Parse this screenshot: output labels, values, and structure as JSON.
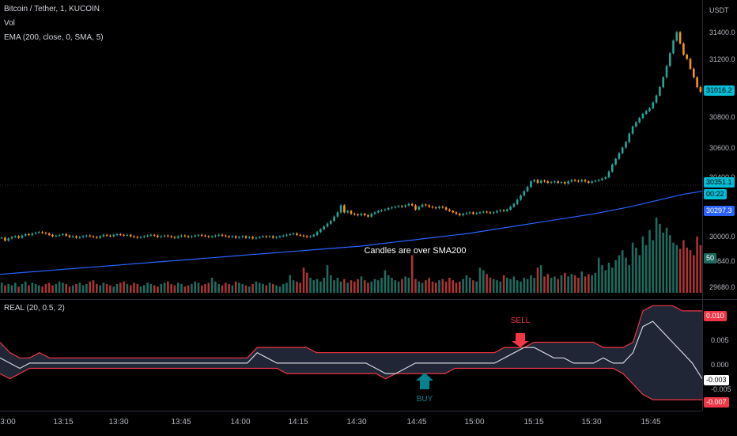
{
  "header": {
    "symbol": "Bitcoin / Tether, 1, KUCOIN",
    "vol": "Vol",
    "ema": "EMA (200, close, 0, SMA, 5)",
    "osc": "REAL (20, 0.5, 2)"
  },
  "price_axis": {
    "unit": "USDT",
    "ticks": [
      "31400.0",
      "31200.0",
      "30800.0",
      "30600.0",
      "30400.0",
      "30000.0",
      "29840.0",
      "29680.0"
    ],
    "last_price": "31016.2",
    "bar_price": "30351.1",
    "countdown": "00:22",
    "ema_price": "30297.3",
    "vol_tag": "50"
  },
  "osc_axis": {
    "ticks": [
      "0.005",
      "0.000",
      "-0.005"
    ],
    "upper_tag": "0.010",
    "value_tag": "-0.003",
    "lower_tag": "-0.007"
  },
  "time_axis": [
    "3:00",
    "13:15",
    "13:30",
    "13:45",
    "14:00",
    "14:15",
    "14:30",
    "14:45",
    "15:00",
    "15:15",
    "15:30",
    "15:45"
  ],
  "annotations": {
    "candles_note": "Candles are over SMA200",
    "buy": "BUY",
    "sell": "SELL"
  },
  "colors": {
    "up": "#26a69a",
    "down": "#f7931a",
    "ema": "#2962ff",
    "vol_up": "#1d6b5f",
    "vol_down": "#a93434",
    "band": "#f23645",
    "price_tag": "#00bcd4"
  },
  "chart_data": {
    "type": "candlestick",
    "ylim": [
      29600,
      31500
    ],
    "close": [
      29980,
      29960,
      29975,
      29985,
      29990,
      29980,
      29995,
      30005,
      30000,
      30010,
      30015,
      30020,
      30015,
      30010,
      30000,
      29990,
      29995,
      30000,
      30005,
      29995,
      29985,
      29990,
      29980,
      29985,
      29990,
      29995,
      29990,
      29985,
      29980,
      29990,
      30000,
      29995,
      29990,
      30000,
      30005,
      30000,
      29995,
      30000,
      29990,
      29985,
      29980,
      29985,
      29990,
      29995,
      30000,
      29995,
      29985,
      29990,
      29995,
      29990,
      29985,
      29980,
      29990,
      29995,
      29990,
      29985,
      29990,
      29995,
      30000,
      29995,
      29990,
      29985,
      29990,
      29995,
      30000,
      29995,
      29990,
      29985,
      29990,
      29980,
      29985,
      29990,
      29980,
      29985,
      29975,
      29980,
      29985,
      29990,
      29985,
      29990,
      29980,
      29985,
      29990,
      29995,
      30000,
      30005,
      30010,
      30000,
      29995,
      29990,
      29985,
      29990,
      30000,
      30020,
      30040,
      30060,
      30080,
      30100,
      30130,
      30160,
      30210,
      30160,
      30170,
      30150,
      30145,
      30140,
      30150,
      30140,
      30130,
      30150,
      30160,
      30170,
      30175,
      30180,
      30190,
      30195,
      30200,
      30205,
      30200,
      30210,
      30220,
      30210,
      30180,
      30200,
      30215,
      30210,
      30200,
      30195,
      30190,
      30200,
      30195,
      30180,
      30170,
      30160,
      30150,
      30140,
      30150,
      30155,
      30160,
      30150,
      30155,
      30160,
      30165,
      30160,
      30155,
      30160,
      30170,
      30175,
      30170,
      30180,
      30200,
      30220,
      30250,
      30280,
      30310,
      30340,
      30380,
      30390,
      30370,
      30385,
      30380,
      30370,
      30375,
      30380,
      30370,
      30375,
      30365,
      30380,
      30390,
      30385,
      30380,
      30390,
      30380,
      30370,
      30380,
      30385,
      30390,
      30400,
      30410,
      30450,
      30500,
      30540,
      30580,
      30620,
      30660,
      30720,
      30770,
      30800,
      30830,
      30860,
      30880,
      30900,
      30940,
      30990,
      31050,
      31120,
      31200,
      31290,
      31380,
      31440,
      31360,
      31280,
      31250,
      31180,
      31120,
      31050,
      31016
    ],
    "volume": [
      8,
      6,
      7,
      6,
      8,
      5,
      7,
      9,
      6,
      8,
      7,
      6,
      5,
      7,
      8,
      6,
      7,
      9,
      8,
      7,
      5,
      6,
      7,
      8,
      6,
      7,
      9,
      10,
      7,
      6,
      8,
      7,
      6,
      5,
      7,
      8,
      9,
      7,
      6,
      8,
      7,
      5,
      6,
      8,
      7,
      6,
      5,
      7,
      8,
      9,
      7,
      6,
      8,
      7,
      5,
      6,
      7,
      9,
      8,
      6,
      7,
      8,
      12,
      9,
      7,
      6,
      8,
      7,
      6,
      9,
      8,
      7,
      6,
      5,
      7,
      9,
      8,
      7,
      6,
      8,
      7,
      6,
      5,
      7,
      8,
      14,
      10,
      9,
      8,
      20,
      16,
      12,
      10,
      11,
      9,
      12,
      22,
      14,
      10,
      12,
      9,
      11,
      8,
      10,
      9,
      11,
      13,
      10,
      8,
      9,
      11,
      10,
      12,
      18,
      14,
      12,
      10,
      9,
      11,
      13,
      12,
      30,
      11,
      9,
      8,
      10,
      12,
      9,
      8,
      10,
      11,
      9,
      12,
      10,
      8,
      9,
      11,
      14,
      12,
      10,
      9,
      20,
      18,
      15,
      12,
      11,
      10,
      9,
      14,
      12,
      11,
      13,
      10,
      9,
      12,
      11,
      14,
      12,
      20,
      22,
      13,
      15,
      12,
      13,
      11,
      14,
      16,
      13,
      15,
      14,
      12,
      17,
      13,
      15,
      14,
      16,
      28,
      22,
      18,
      24,
      20,
      26,
      30,
      34,
      28,
      22,
      40,
      36,
      30,
      45,
      38,
      50,
      42,
      60,
      55,
      48,
      52,
      46,
      40,
      38,
      35,
      42,
      36,
      34,
      30,
      45,
      38
    ],
    "ema200": [
      29720,
      29730,
      29740,
      29750,
      29760,
      29770,
      29780,
      29790,
      29800,
      29810,
      29820,
      29830,
      29840,
      29850,
      29860,
      29870,
      29880,
      29890,
      29900,
      29910,
      29920,
      29935,
      29950,
      29965,
      29980,
      29995,
      30010,
      30030,
      30050,
      30070,
      30090,
      30110,
      30130,
      30150,
      30175,
      30200,
      30230,
      30260,
      30290,
      30310
    ],
    "osc_upper": [
      0.004,
      0.002,
      0.001,
      0.001,
      0.002,
      0.001,
      0.001,
      0.001,
      0.001,
      0.001,
      0.001,
      0.001,
      0.001,
      0.001,
      0.001,
      0.001,
      0.001,
      0.001,
      0.001,
      0.001,
      0.001,
      0.001,
      0.001,
      0.001,
      0.001,
      0.001,
      0.003,
      0.003,
      0.003,
      0.003,
      0.003,
      0.003,
      0.002,
      0.002,
      0.002,
      0.002,
      0.002,
      0.002,
      0.002,
      0.002,
      0.002,
      0.002,
      0.002,
      0.002,
      0.002,
      0.002,
      0.002,
      0.002,
      0.002,
      0.002,
      0.002,
      0.003,
      0.003,
      0.003,
      0.004,
      0.004,
      0.004,
      0.004,
      0.004,
      0.004,
      0.004,
      0.003,
      0.003,
      0.003,
      0.004,
      0.01,
      0.011,
      0.011,
      0.011,
      0.01,
      0.01,
      0.01
    ],
    "osc_lower": [
      -0.002,
      -0.003,
      -0.002,
      -0.001,
      -0.001,
      -0.001,
      -0.001,
      -0.001,
      -0.001,
      -0.001,
      -0.001,
      -0.001,
      -0.001,
      -0.001,
      -0.001,
      -0.001,
      -0.001,
      -0.001,
      -0.001,
      -0.001,
      -0.001,
      -0.001,
      -0.001,
      -0.001,
      -0.001,
      -0.001,
      -0.001,
      -0.001,
      -0.001,
      -0.002,
      -0.002,
      -0.002,
      -0.002,
      -0.002,
      -0.002,
      -0.002,
      -0.002,
      -0.002,
      -0.002,
      -0.003,
      -0.002,
      -0.002,
      -0.002,
      -0.002,
      -0.002,
      -0.002,
      -0.001,
      -0.001,
      -0.001,
      -0.001,
      -0.001,
      -0.001,
      -0.001,
      -0.001,
      -0.001,
      -0.001,
      -0.001,
      -0.001,
      -0.001,
      -0.001,
      -0.001,
      -0.001,
      -0.001,
      -0.002,
      -0.004,
      -0.006,
      -0.007,
      -0.007,
      -0.007,
      -0.007,
      -0.007,
      -0.007
    ],
    "osc_line": [
      0.001,
      0.0,
      -0.001,
      0.0,
      0.0,
      0.0,
      0.0,
      0.0,
      0.0,
      0.0,
      0.0,
      0.0,
      0.0,
      0.0,
      0.0,
      0.0,
      0.0,
      0.0,
      0.0,
      0.0,
      0.0,
      0.0,
      0.0,
      0.0,
      0.0,
      0.0,
      0.002,
      0.001,
      0.0,
      0.0,
      0.0,
      0.0,
      0.0,
      0.0,
      0.0,
      0.0,
      0.0,
      0.0,
      -0.001,
      -0.002,
      -0.002,
      -0.001,
      0.0,
      0.0,
      0.0,
      0.0,
      0.0,
      0.0,
      0.0,
      0.0,
      0.0,
      0.001,
      0.002,
      0.003,
      0.003,
      0.002,
      0.001,
      0.001,
      0.0,
      0.0,
      0.0,
      0.001,
      0.0,
      0.0,
      0.002,
      0.007,
      0.008,
      0.006,
      0.004,
      0.002,
      0.0,
      -0.003
    ],
    "osc_ylim": [
      -0.0085,
      0.0115
    ]
  }
}
